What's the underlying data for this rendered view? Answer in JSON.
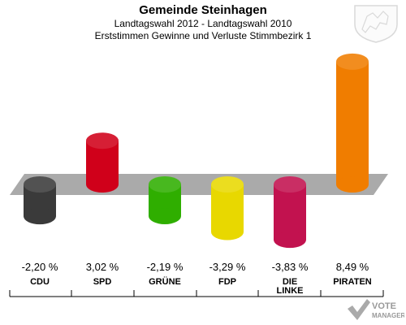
{
  "header": {
    "title": "Gemeinde Steinhagen",
    "subtitle": "Landtagswahl 2012 - Landtagswahl 2010",
    "description": "Erststimmen Gewinne und Verluste Stimmbezirk 1"
  },
  "logo": {
    "line1": "VOTE",
    "line2": "MANAGER"
  },
  "chart_data": {
    "type": "bar",
    "title": "Gemeinde Steinhagen",
    "subtitle": "Landtagswahl 2012 - Landtagswahl 2010",
    "description": "Erststimmen Gewinne und Verluste Stimmbezirk 1",
    "unit": "%",
    "categories": [
      "CDU",
      "SPD",
      "GRÜNE",
      "FDP",
      "DIE LINKE",
      "PIRATEN"
    ],
    "values": [
      -2.2,
      3.02,
      -2.19,
      -3.29,
      -3.83,
      8.49
    ],
    "value_labels": [
      "-2,20 %",
      "3,02 %",
      "-2,19 %",
      "-3,29 %",
      "-3,83 %",
      "8,49 %"
    ],
    "colors": [
      "#3a3a3a",
      "#d0001a",
      "#2fae00",
      "#e8d800",
      "#c2124f",
      "#f07d00"
    ],
    "grid": false,
    "legend": "none"
  }
}
